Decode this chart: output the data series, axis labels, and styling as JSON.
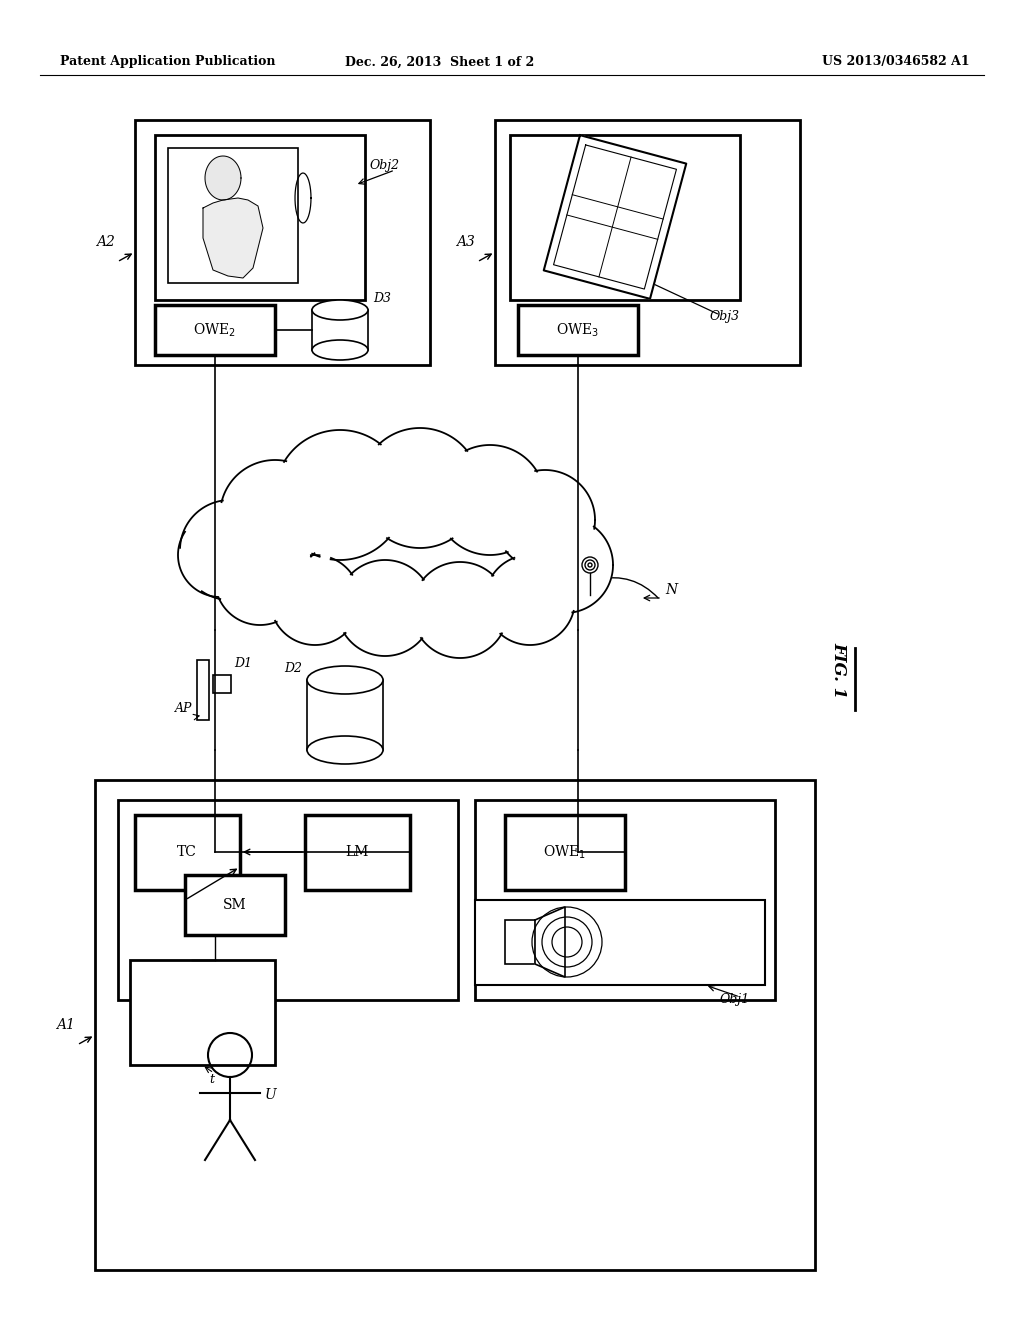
{
  "bg_color": "#ffffff",
  "header_left": "Patent Application Publication",
  "header_mid": "Dec. 26, 2013  Sheet 1 of 2",
  "header_right": "US 2013/0346582 A1",
  "fig_label": "FIG._1",
  "fig_width": 10.24,
  "fig_height": 13.2
}
